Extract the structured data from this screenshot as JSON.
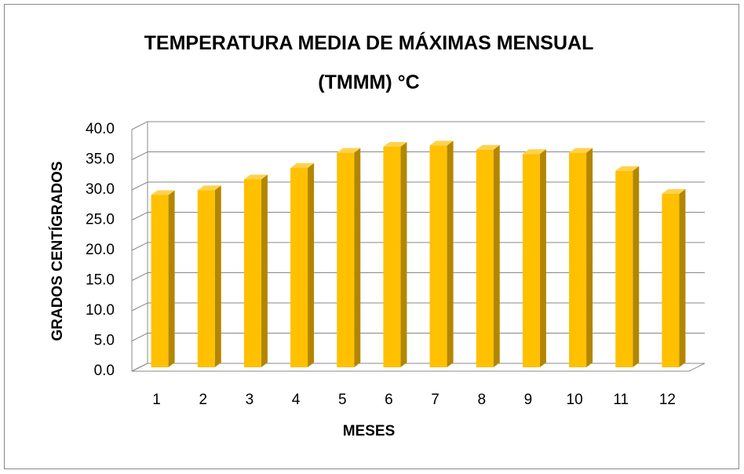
{
  "chart_data": {
    "type": "bar3d",
    "title": "TEMPERATURA MEDIA DE MÁXIMAS MENSUAL (TMMM) °C",
    "xlabel": "MESES",
    "ylabel": "GRADOS CENTÍGRADOS",
    "categories": [
      "1",
      "2",
      "3",
      "4",
      "5",
      "6",
      "7",
      "8",
      "9",
      "10",
      "11",
      "12"
    ],
    "values": [
      28.5,
      29.3,
      31.1,
      33.0,
      35.5,
      36.5,
      36.7,
      36.0,
      35.3,
      35.5,
      32.5,
      28.7
    ],
    "color": "#ffc000",
    "ylim": [
      0,
      40
    ],
    "yticks": [
      {
        "value": 0,
        "label": "0.0"
      },
      {
        "value": 5,
        "label": "5.0"
      },
      {
        "value": 10,
        "label": "10.0"
      },
      {
        "value": 15,
        "label": "15.0"
      },
      {
        "value": 20,
        "label": "20.0"
      },
      {
        "value": 25,
        "label": "25.0"
      },
      {
        "value": 30,
        "label": "30.0"
      },
      {
        "value": 35,
        "label": "35.0"
      },
      {
        "value": 40,
        "label": "40.0"
      }
    ],
    "grid": true
  }
}
